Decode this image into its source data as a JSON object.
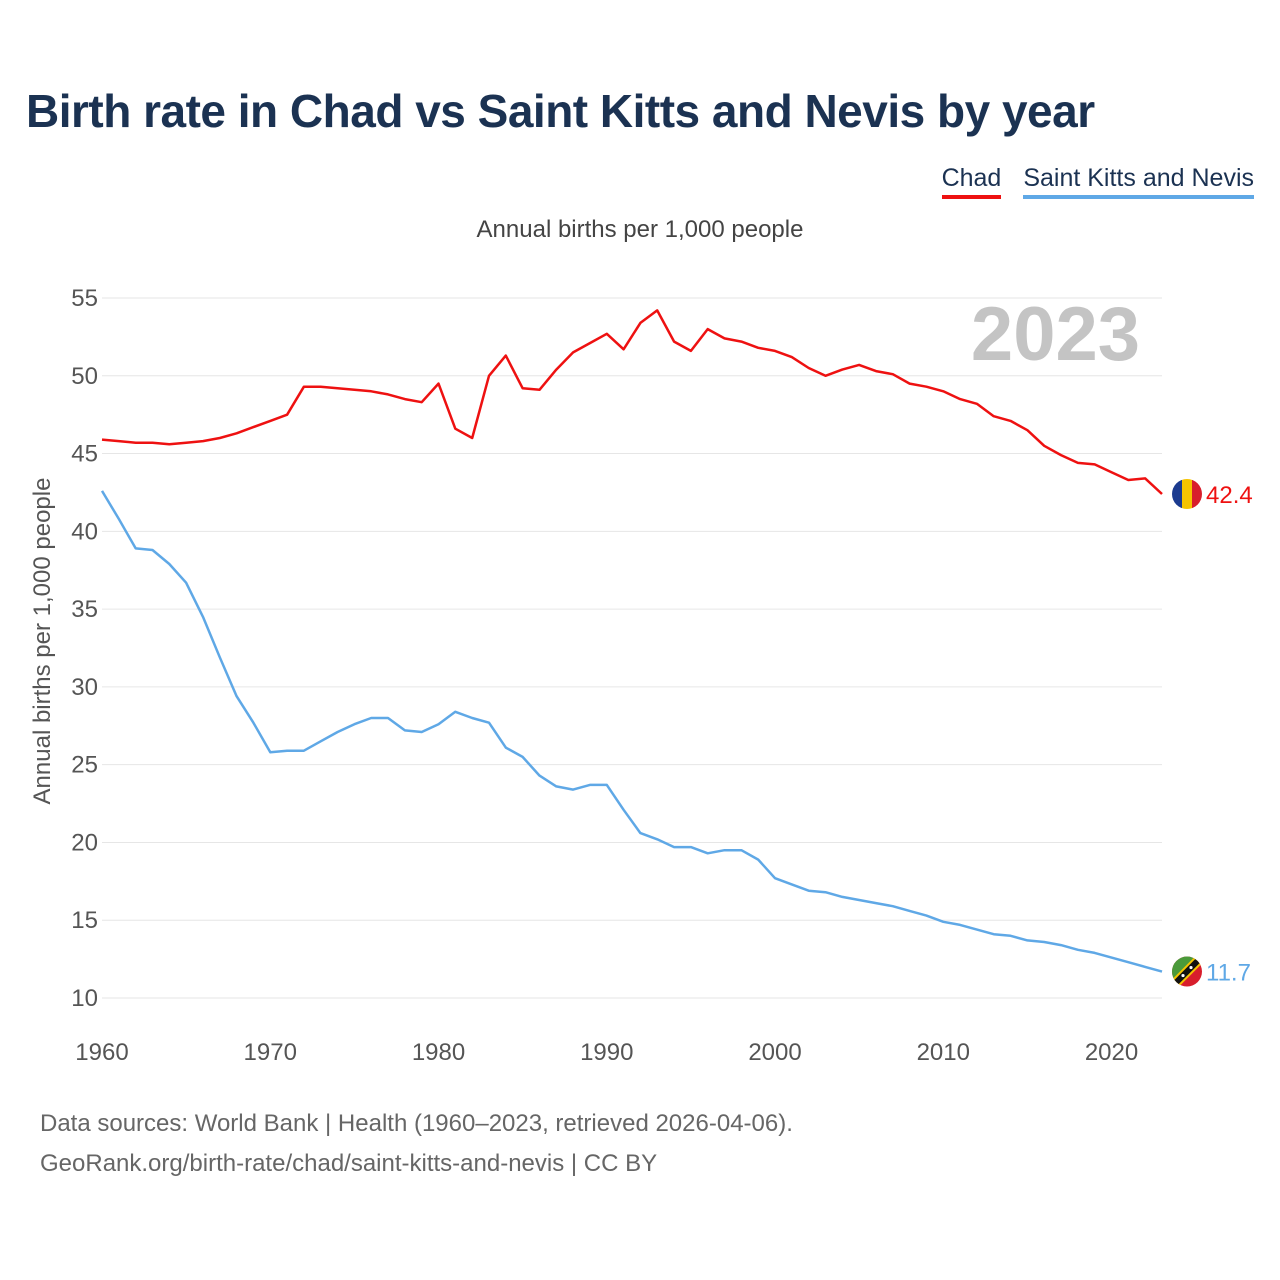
{
  "title": "Birth rate in Chad vs Saint Kitts and Nevis by year",
  "legend": [
    {
      "name": "Chad",
      "color": "#ee1111"
    },
    {
      "name": "Saint Kitts and Nevis",
      "color": "#5fa8e6"
    }
  ],
  "footer": {
    "line1": "Data sources: World Bank | Health (1960–2023, retrieved 2026-04-06).",
    "line2": "GeoRank.org/birth-rate/chad/saint-kitts-and-nevis | CC BY"
  },
  "chart_data": {
    "type": "line",
    "title": "Birth rate in Chad vs Saint Kitts and Nevis by year",
    "subtitle": "Annual births per 1,000 people",
    "ylabel": "Annual births per 1,000 people",
    "xlabel": "",
    "year_label": "2023",
    "xlim": [
      1960,
      2023
    ],
    "ylim": [
      10,
      55
    ],
    "xticks": [
      1960,
      1970,
      1980,
      1990,
      2000,
      2010,
      2020
    ],
    "yticks": [
      10,
      15,
      20,
      25,
      30,
      35,
      40,
      45,
      50,
      55
    ],
    "grid": true,
    "x": [
      1960,
      1961,
      1962,
      1963,
      1964,
      1965,
      1966,
      1967,
      1968,
      1969,
      1970,
      1971,
      1972,
      1973,
      1974,
      1975,
      1976,
      1977,
      1978,
      1979,
      1980,
      1981,
      1982,
      1983,
      1984,
      1985,
      1986,
      1987,
      1988,
      1989,
      1990,
      1991,
      1992,
      1993,
      1994,
      1995,
      1996,
      1997,
      1998,
      1999,
      2000,
      2001,
      2002,
      2003,
      2004,
      2005,
      2006,
      2007,
      2008,
      2009,
      2010,
      2011,
      2012,
      2013,
      2014,
      2015,
      2016,
      2017,
      2018,
      2019,
      2020,
      2021,
      2022,
      2023
    ],
    "series": [
      {
        "name": "Chad",
        "color": "#ee1111",
        "end_label": "42.4",
        "values": [
          45.9,
          45.8,
          45.7,
          45.7,
          45.6,
          45.7,
          45.8,
          46.0,
          46.3,
          46.7,
          47.1,
          47.5,
          49.3,
          49.3,
          49.2,
          49.1,
          49.0,
          48.8,
          48.5,
          48.3,
          49.5,
          46.6,
          46.0,
          50.0,
          51.3,
          49.2,
          49.1,
          50.4,
          51.5,
          52.1,
          52.7,
          51.7,
          53.4,
          54.2,
          52.2,
          51.6,
          53.0,
          52.4,
          52.2,
          51.8,
          51.6,
          51.2,
          50.5,
          50.0,
          50.4,
          50.7,
          50.3,
          50.1,
          49.5,
          49.3,
          49.0,
          48.5,
          48.2,
          47.4,
          47.1,
          46.5,
          45.5,
          44.9,
          44.4,
          44.3,
          43.8,
          43.3,
          43.4,
          42.4
        ]
      },
      {
        "name": "Saint Kitts and Nevis",
        "color": "#5fa8e6",
        "end_label": "11.7",
        "values": [
          42.6,
          40.8,
          38.9,
          38.8,
          37.9,
          36.7,
          34.5,
          31.9,
          29.4,
          27.7,
          25.8,
          25.9,
          25.9,
          26.5,
          27.1,
          27.6,
          28.0,
          28.0,
          27.2,
          27.1,
          27.6,
          28.4,
          28.0,
          27.7,
          26.1,
          25.5,
          24.3,
          23.6,
          23.4,
          23.7,
          23.7,
          22.1,
          20.6,
          20.2,
          19.7,
          19.7,
          19.3,
          19.5,
          19.5,
          18.9,
          17.7,
          17.3,
          16.9,
          16.8,
          16.5,
          16.3,
          16.1,
          15.9,
          15.6,
          15.3,
          14.9,
          14.7,
          14.4,
          14.1,
          14.0,
          13.7,
          13.6,
          13.4,
          13.1,
          12.9,
          12.6,
          12.3,
          12.0,
          11.7
        ]
      }
    ]
  }
}
